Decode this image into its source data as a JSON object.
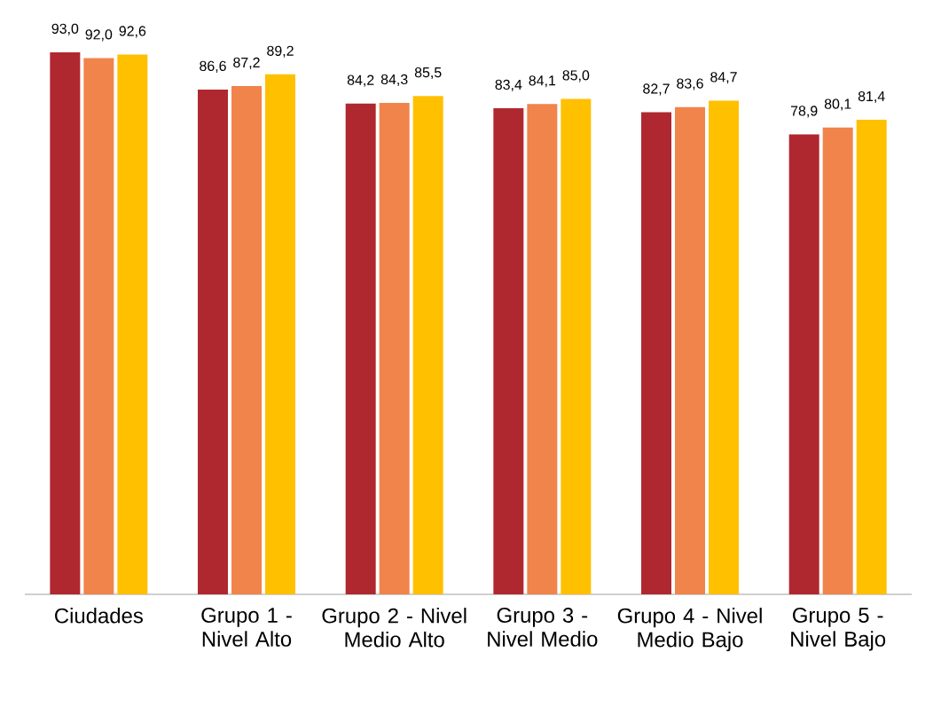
{
  "chart_data": {
    "type": "bar",
    "categories": [
      "Ciudades",
      "Grupo 1 - Nivel Alto",
      "Grupo 2 - Nivel Medio Alto",
      "Grupo 3 - Nivel Medio",
      "Grupo 4 - Nivel Medio Bajo",
      "Grupo 5 - Nivel Bajo"
    ],
    "series": [
      {
        "color": "#b0282f",
        "values": [
          93.0,
          86.6,
          84.2,
          83.4,
          82.7,
          78.9
        ],
        "value_labels": [
          "93,0",
          "86,6",
          "84,2",
          "83,4",
          "82,7",
          "78,9"
        ]
      },
      {
        "color": "#f0844a",
        "values": [
          92.0,
          87.2,
          84.3,
          84.1,
          83.6,
          80.1
        ],
        "value_labels": [
          "92,0",
          "87,2",
          "84,3",
          "84,1",
          "83,6",
          "80,1"
        ]
      },
      {
        "color": "#ffc000",
        "values": [
          92.6,
          89.2,
          85.5,
          85.0,
          84.7,
          81.4
        ],
        "value_labels": [
          "92,6",
          "89,2",
          "85,5",
          "85,0",
          "84,7",
          "81,4"
        ]
      }
    ],
    "tick_labels": "x"
  }
}
